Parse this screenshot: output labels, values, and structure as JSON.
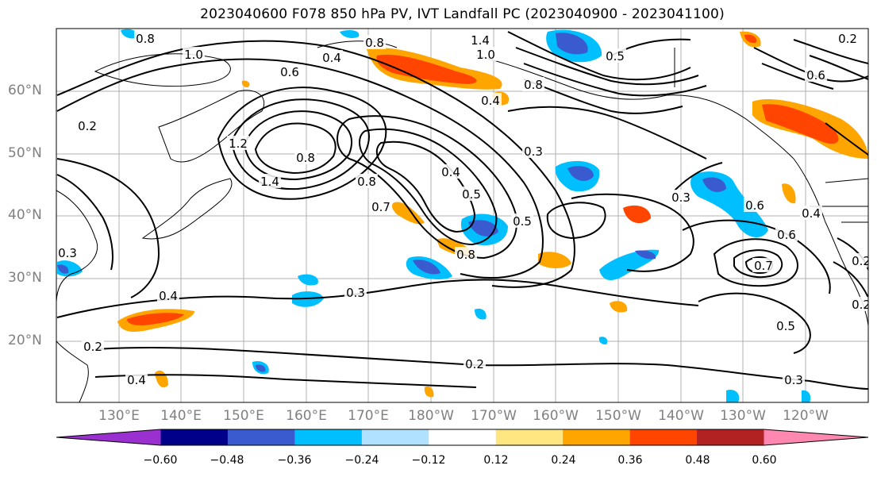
{
  "title": "2023040600 F078 850 hPa PV, IVT Landfall PC (2023040900 - 2023041100)",
  "lat_labels": [
    "60°N",
    "50°N",
    "40°N",
    "30°N",
    "20°N"
  ],
  "lon_labels": [
    "130°E",
    "140°E",
    "150°E",
    "160°E",
    "170°E",
    "180°W",
    "170°W",
    "160°W",
    "150°W",
    "140°W",
    "130°W",
    "120°W"
  ],
  "contour_labels": [
    "0.8",
    "1.0",
    "0.4",
    "0.6",
    "1.4",
    "1.0",
    "0.5",
    "0.8",
    "0.6",
    "0.4",
    "0.8",
    "0.2",
    "1.2",
    "1.4",
    "0.8",
    "0.3",
    "0.4",
    "0.5",
    "0.8",
    "0.7",
    "0.5",
    "0.3",
    "0.3",
    "0.6",
    "0.6",
    "0.7",
    "0.4",
    "0.8",
    "0.4",
    "0.3",
    "0.4",
    "0.2",
    "0.2",
    "0.3",
    "0.5",
    "0.2",
    "0.2",
    "0.2"
  ],
  "colorbar": {
    "ticks": [
      "−0.60",
      "−0.48",
      "−0.36",
      "−0.24",
      "−0.12",
      "0.12",
      "0.24",
      "0.36",
      "0.48",
      "0.60"
    ],
    "colors": [
      "#9b30d0",
      "#00008b",
      "#3a5bd0",
      "#00bfff",
      "#b0e2ff",
      "#ffffff",
      "#ffe680",
      "#ffa500",
      "#ff4500",
      "#b22222",
      "#ff88b0"
    ]
  },
  "shading_colors": {
    "neg_light": "#00bfff",
    "neg_mid": "#3a5bd0",
    "pos_light": "#ffa500",
    "pos_mid": "#ff4500",
    "pos_pale": "#ffe680"
  }
}
